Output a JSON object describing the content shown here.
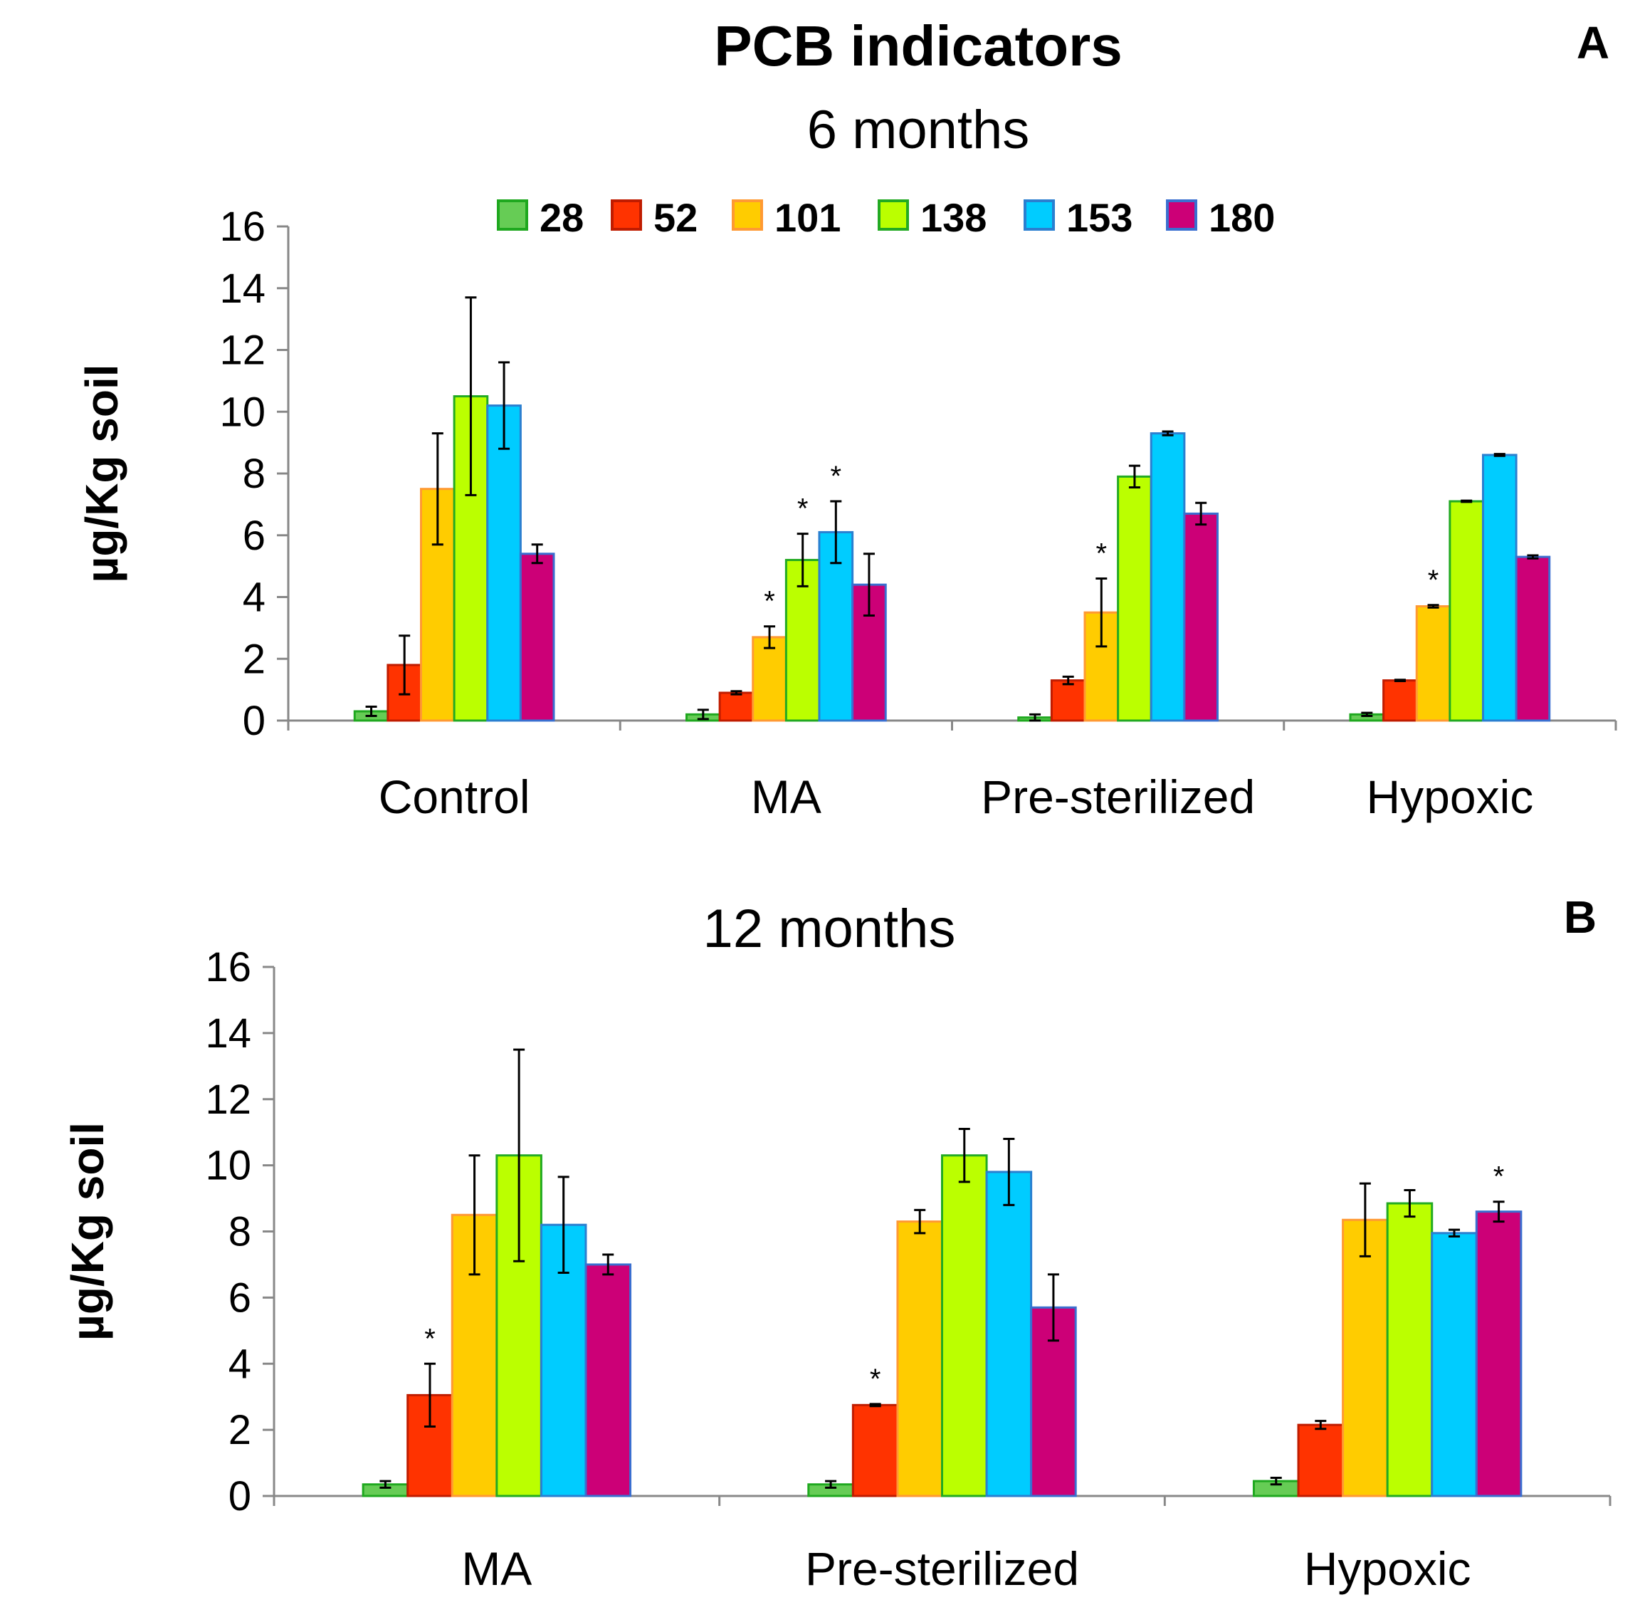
{
  "figure": {
    "title": "PCB indicators"
  },
  "legend": {
    "items": [
      {
        "label": "28",
        "fill": "#66cc55",
        "stroke": "#1fa81f"
      },
      {
        "label": "52",
        "fill": "#ff3300",
        "stroke": "#c01c00"
      },
      {
        "label": "101",
        "fill": "#ffcc00",
        "stroke": "#ff9933"
      },
      {
        "label": "138",
        "fill": "#bbff00",
        "stroke": "#22aa22"
      },
      {
        "label": "153",
        "fill": "#00ccff",
        "stroke": "#2a7fd0"
      },
      {
        "label": "180",
        "fill": "#cc0077",
        "stroke": "#3a6fd0"
      }
    ]
  },
  "chart_data": [
    {
      "type": "bar",
      "panel": "A",
      "subtitle": "6 months",
      "ylabel": "µg/Kg soil",
      "xlabel": "",
      "ylim": [
        0,
        16
      ],
      "yticks": [
        "0",
        "2",
        "4",
        "6",
        "8",
        "10",
        "12",
        "14",
        "16"
      ],
      "categories": [
        "Control",
        "MA",
        "Pre-sterilized",
        "Hypoxic"
      ],
      "series": [
        {
          "name": "28",
          "values": [
            0.3,
            0.2,
            0.1,
            0.2
          ],
          "errors": [
            0.15,
            0.15,
            0.1,
            0.05
          ],
          "significant": [
            false,
            false,
            false,
            false
          ]
        },
        {
          "name": "52",
          "values": [
            1.8,
            0.9,
            1.3,
            1.3
          ],
          "errors": [
            0.95,
            0.05,
            0.12,
            0.02
          ],
          "significant": [
            false,
            false,
            false,
            false
          ]
        },
        {
          "name": "101",
          "values": [
            7.5,
            2.7,
            3.5,
            3.7
          ],
          "errors": [
            1.8,
            0.35,
            1.1,
            0.04
          ],
          "significant": [
            false,
            true,
            true,
            true
          ]
        },
        {
          "name": "138",
          "values": [
            10.5,
            5.2,
            7.9,
            7.1
          ],
          "errors": [
            3.2,
            0.85,
            0.35,
            0.02
          ],
          "significant": [
            false,
            true,
            false,
            false
          ]
        },
        {
          "name": "153",
          "values": [
            10.2,
            6.1,
            9.3,
            8.6
          ],
          "errors": [
            1.4,
            1.0,
            0.06,
            0.03
          ],
          "significant": [
            false,
            true,
            false,
            false
          ]
        },
        {
          "name": "180",
          "values": [
            5.4,
            4.4,
            6.7,
            5.3
          ],
          "errors": [
            0.3,
            1.0,
            0.35,
            0.05
          ],
          "significant": [
            false,
            false,
            false,
            false
          ]
        }
      ]
    },
    {
      "type": "bar",
      "panel": "B",
      "subtitle": "12 months",
      "ylabel": "µg/Kg soil",
      "xlabel": "",
      "ylim": [
        0,
        16
      ],
      "yticks": [
        "0",
        "2",
        "4",
        "6",
        "8",
        "10",
        "12",
        "14",
        "16"
      ],
      "categories": [
        "MA",
        "Pre-sterilized",
        "Hypoxic"
      ],
      "series": [
        {
          "name": "28",
          "values": [
            0.35,
            0.35,
            0.45
          ],
          "errors": [
            0.1,
            0.1,
            0.1
          ],
          "significant": [
            false,
            false,
            false
          ]
        },
        {
          "name": "52",
          "values": [
            3.05,
            2.75,
            2.15
          ],
          "errors": [
            0.95,
            0.03,
            0.12
          ],
          "significant": [
            true,
            true,
            false
          ]
        },
        {
          "name": "101",
          "values": [
            8.5,
            8.3,
            8.35
          ],
          "errors": [
            1.8,
            0.35,
            1.1
          ],
          "significant": [
            false,
            false,
            false
          ]
        },
        {
          "name": "138",
          "values": [
            10.3,
            10.3,
            8.85
          ],
          "errors": [
            3.2,
            0.8,
            0.4
          ],
          "significant": [
            false,
            false,
            false
          ]
        },
        {
          "name": "153",
          "values": [
            8.2,
            9.8,
            7.95
          ],
          "errors": [
            1.45,
            1.0,
            0.1
          ],
          "significant": [
            false,
            false,
            false
          ]
        },
        {
          "name": "180",
          "values": [
            7.0,
            5.7,
            8.6
          ],
          "errors": [
            0.3,
            1.0,
            0.3
          ],
          "significant": [
            false,
            false,
            true
          ]
        }
      ]
    }
  ]
}
